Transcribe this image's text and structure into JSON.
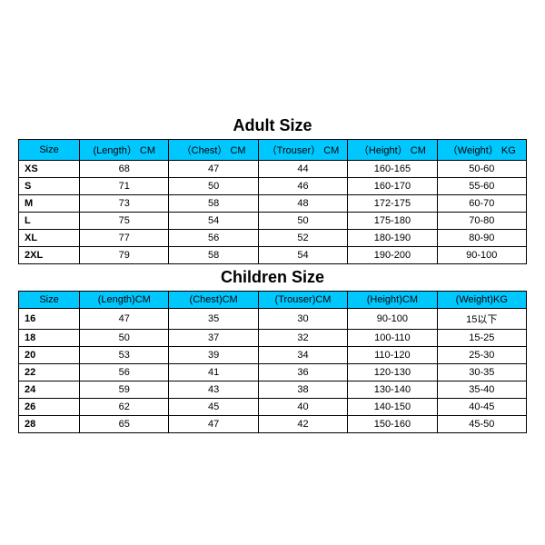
{
  "header_bg": "#00c8ff",
  "header_text_color": "#000000",
  "border_color": "#000000",
  "adult": {
    "title": "Adult Size",
    "columns": [
      "Size",
      "(Length） CM",
      "（Chest） CM",
      "（Trouser） CM",
      "（Height） CM",
      "（Weight） KG"
    ],
    "rows": [
      [
        "XS",
        "68",
        "47",
        "44",
        "160-165",
        "50-60"
      ],
      [
        "S",
        "71",
        "50",
        "46",
        "160-170",
        "55-60"
      ],
      [
        "M",
        "73",
        "58",
        "48",
        "172-175",
        "60-70"
      ],
      [
        "L",
        "75",
        "54",
        "50",
        "175-180",
        "70-80"
      ],
      [
        "XL",
        "77",
        "56",
        "52",
        "180-190",
        "80-90"
      ],
      [
        "2XL",
        "79",
        "58",
        "54",
        "190-200",
        "90-100"
      ]
    ]
  },
  "children": {
    "title": "Children Size",
    "columns": [
      "Size",
      "(Length)CM",
      "(Chest)CM",
      "(Trouser)CM",
      "(Height)CM",
      "(Weight)KG"
    ],
    "rows": [
      [
        "16",
        "47",
        "35",
        "30",
        "90-100",
        "15以下"
      ],
      [
        "18",
        "50",
        "37",
        "32",
        "100-110",
        "15-25"
      ],
      [
        "20",
        "53",
        "39",
        "34",
        "110-120",
        "25-30"
      ],
      [
        "22",
        "56",
        "41",
        "36",
        "120-130",
        "30-35"
      ],
      [
        "24",
        "59",
        "43",
        "38",
        "130-140",
        "35-40"
      ],
      [
        "26",
        "62",
        "45",
        "40",
        "140-150",
        "40-45"
      ],
      [
        "28",
        "65",
        "47",
        "42",
        "150-160",
        "45-50"
      ]
    ]
  }
}
